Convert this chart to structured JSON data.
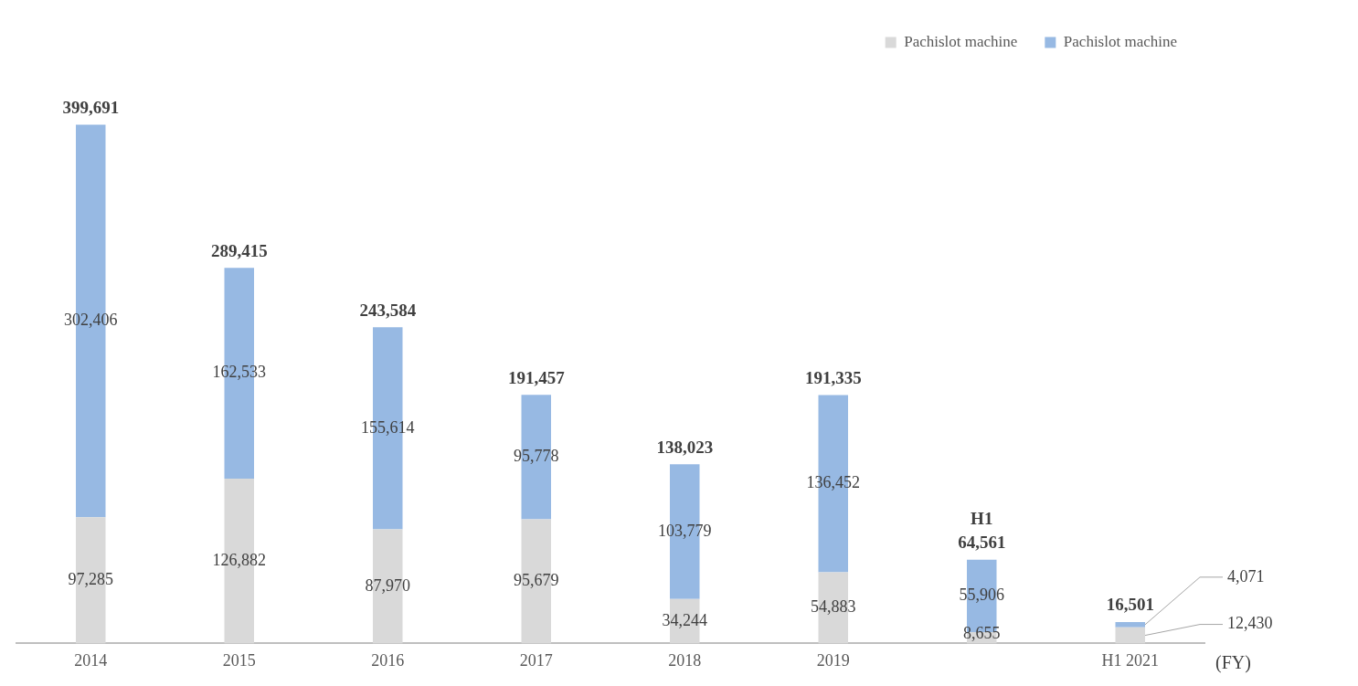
{
  "chart_data": {
    "type": "bar",
    "stacked": true,
    "xlabel": "(FY)",
    "legend": "top right",
    "grid": false,
    "tick_labels": "x",
    "categories": [
      "2014",
      "2015",
      "2016",
      "2017",
      "2018",
      "2019",
      null,
      "H1 2021"
    ],
    "series": [
      {
        "name": "Pachislot machine",
        "color": "#d9d9d9",
        "values": [
          97285,
          126882,
          87970,
          95679,
          34244,
          54883,
          8655,
          12430
        ],
        "value_labels": [
          "97,285",
          "126,882",
          "87,970",
          "95,679",
          "34,244",
          "54,883",
          "8,655",
          "12,430"
        ]
      },
      {
        "name": "Pachislot machine",
        "color": "#97b9e3",
        "values": [
          302406,
          162533,
          155614,
          95778,
          103779,
          136452,
          55906,
          4071
        ],
        "value_labels": [
          "302,406",
          "162,533",
          "155,614",
          "95,778",
          "103,779",
          "136,452",
          "55,906",
          "4,071"
        ]
      }
    ],
    "totals": [
      "399,691",
      "289,415",
      "243,584",
      "191,457",
      "138,023",
      "191,335",
      "H1\n64,561",
      "16,501"
    ]
  }
}
